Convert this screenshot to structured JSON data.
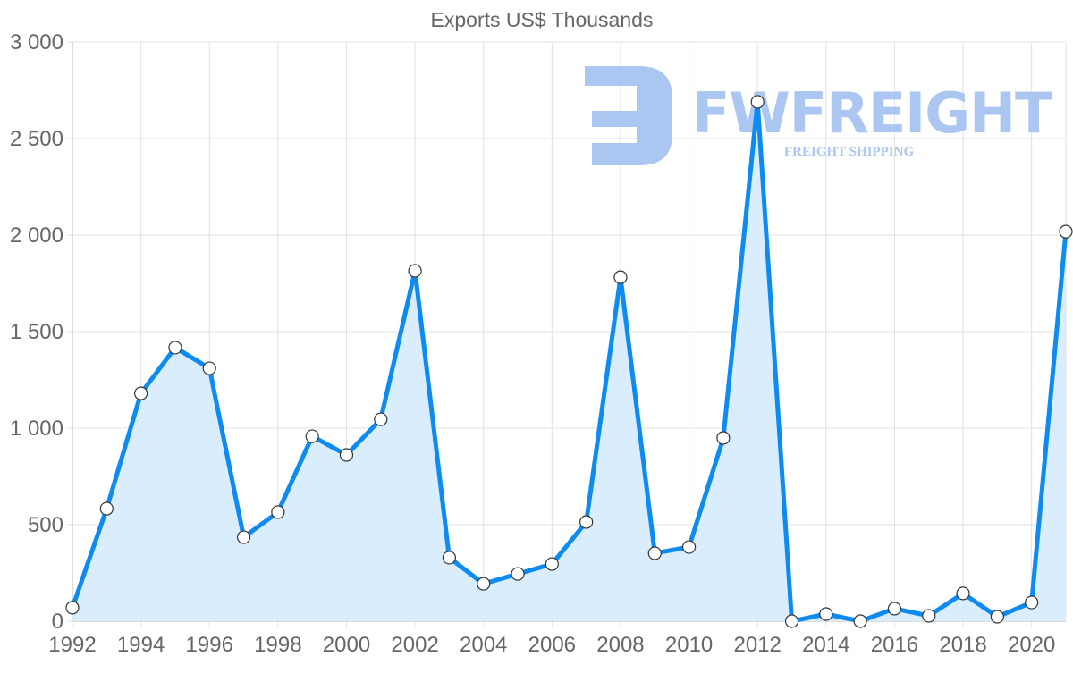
{
  "chart_data": {
    "type": "area",
    "title": "Exports US$ Thousands",
    "xlabel": "",
    "ylabel": "",
    "x": [
      1992,
      1993,
      1994,
      1995,
      1996,
      1997,
      1998,
      1999,
      2000,
      2001,
      2002,
      2003,
      2004,
      2005,
      2006,
      2007,
      2008,
      2009,
      2010,
      2011,
      2012,
      2013,
      2014,
      2015,
      2016,
      2017,
      2018,
      2019,
      2020,
      2021
    ],
    "series": [
      {
        "name": "Exports",
        "values": [
          70,
          583,
          1180,
          1417,
          1310,
          435,
          565,
          958,
          861,
          1046,
          1815,
          329,
          194,
          245,
          296,
          514,
          1782,
          352,
          384,
          949,
          2690,
          0,
          37,
          0,
          65,
          28,
          144,
          23,
          97,
          2018
        ]
      }
    ],
    "ylim": [
      0,
      3000
    ],
    "yticks": [
      0,
      500,
      1000,
      1500,
      2000,
      2500,
      3000
    ],
    "ytick_labels": [
      "0",
      "500",
      "1 000",
      "1 500",
      "2 000",
      "2 500",
      "3 000"
    ],
    "xticks": [
      1992,
      1994,
      1996,
      1998,
      2000,
      2002,
      2004,
      2006,
      2008,
      2010,
      2012,
      2014,
      2016,
      2018,
      2020
    ],
    "xtick_labels": [
      "1992",
      "1994",
      "1996",
      "1998",
      "2000",
      "2002",
      "2004",
      "2006",
      "2008",
      "2010",
      "2012",
      "2014",
      "2016",
      "2018",
      "2020"
    ],
    "grid": true,
    "legend": "none",
    "colors": {
      "line": "#0d8bf0",
      "fill": "#d8ecfc",
      "marker_fill": "#ffffff",
      "marker_stroke": "#333333"
    }
  },
  "watermark": {
    "brand": "FWFREIGHT",
    "tagline": "FREIGHT SHIPPING",
    "color": "#aac6f1"
  }
}
